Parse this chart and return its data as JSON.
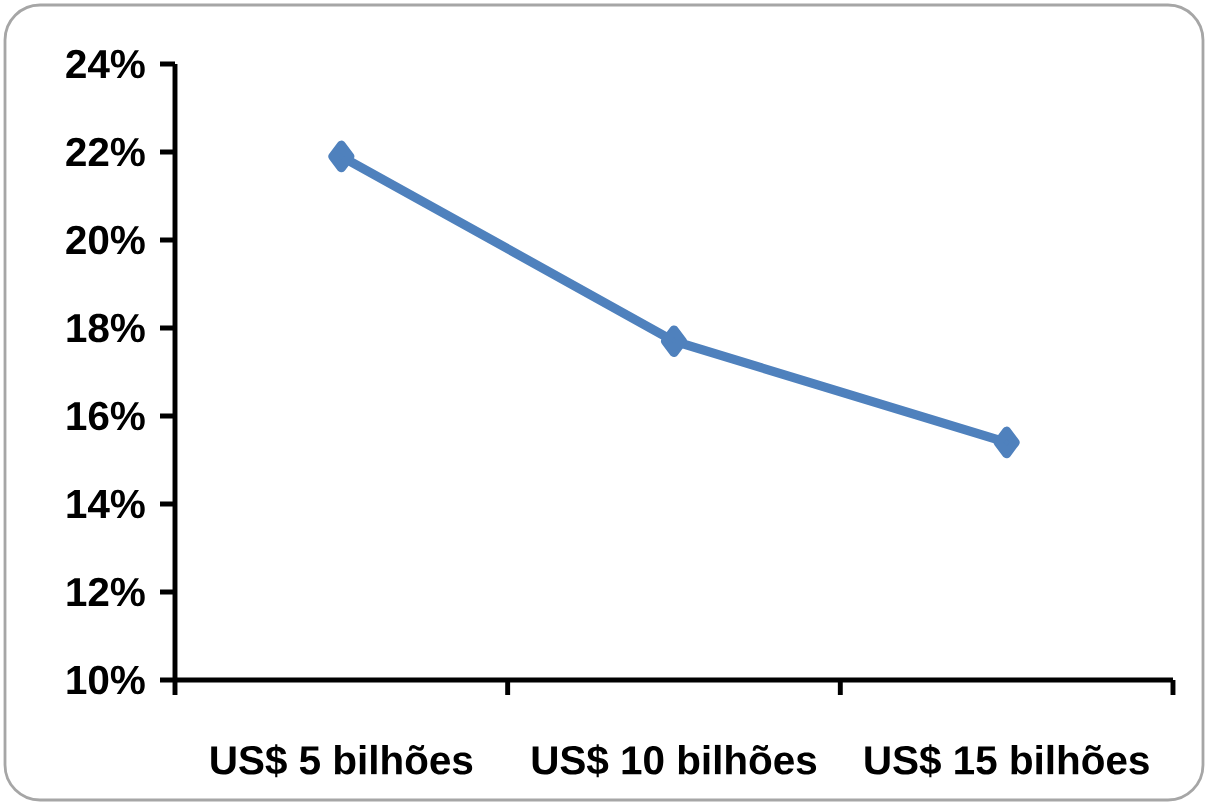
{
  "chart_data": {
    "type": "line",
    "categories": [
      "US$ 5 bilhões",
      "US$ 10 bilhões",
      "US$ 15 bilhões"
    ],
    "series": [
      {
        "color": "#4f81bd",
        "values": [
          21.9,
          17.7,
          15.4
        ]
      }
    ],
    "ylim": [
      10,
      24
    ],
    "yticks": [
      {
        "value": 10,
        "label": "10%"
      },
      {
        "value": 12,
        "label": "12%"
      },
      {
        "value": 14,
        "label": "14%"
      },
      {
        "value": 16,
        "label": "16%"
      },
      {
        "value": 18,
        "label": "18%"
      },
      {
        "value": 20,
        "label": "20%"
      },
      {
        "value": 22,
        "label": "22%"
      },
      {
        "value": 24,
        "label": "24%"
      }
    ],
    "marker": "diamond",
    "line_style": "solid",
    "grid": false,
    "legend": false
  }
}
